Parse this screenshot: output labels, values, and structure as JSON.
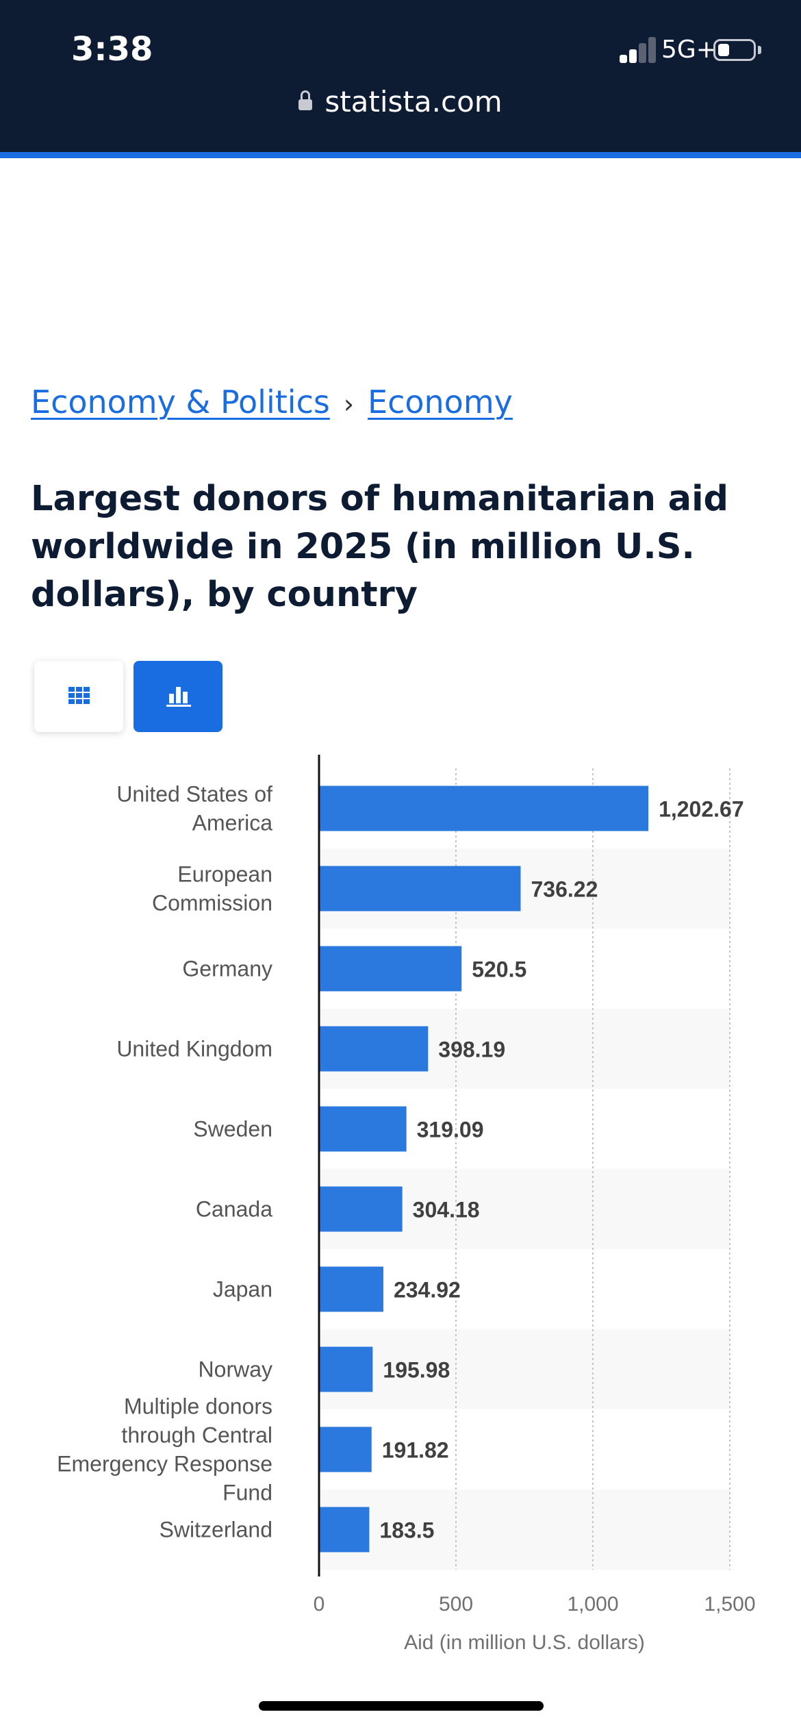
{
  "status": {
    "time": "3:38",
    "network": "5G+"
  },
  "browser": {
    "url": "statista.com"
  },
  "breadcrumbs": [
    {
      "label": "Economy & Politics"
    },
    {
      "label": "Economy"
    }
  ],
  "breadcrumb_separator": "›",
  "page": {
    "title": "Largest donors of humanitarian aid worldwide in 2025 (in million U.S. dollars), by country"
  },
  "view_toggle": {
    "table_icon": "grid-icon",
    "chart_icon": "bar-chart-icon",
    "active": "chart"
  },
  "colors": {
    "bar": "#2b78df",
    "accent": "#1a6de0",
    "header_bg": "#0d1b33"
  },
  "chart_data": {
    "type": "bar",
    "orientation": "horizontal",
    "categories": [
      [
        "United States of",
        "America"
      ],
      [
        "European",
        "Commission"
      ],
      [
        "Germany"
      ],
      [
        "United Kingdom"
      ],
      [
        "Sweden"
      ],
      [
        "Canada"
      ],
      [
        "Japan"
      ],
      [
        "Norway"
      ],
      [
        "Multiple donors",
        "through Central",
        "Emergency Response",
        "Fund"
      ],
      [
        "Switzerland"
      ]
    ],
    "values": [
      1202.67,
      736.22,
      520.5,
      398.19,
      319.09,
      304.18,
      234.92,
      195.98,
      191.82,
      183.5
    ],
    "value_labels": [
      "1,202.67",
      "736.22",
      "520.5",
      "398.19",
      "319.09",
      "304.18",
      "234.92",
      "195.98",
      "191.82",
      "183.5"
    ],
    "xticks": [
      0,
      500,
      1000,
      1500
    ],
    "xtick_labels": [
      "0",
      "500",
      "1,000",
      "1,500"
    ],
    "xlim": [
      0,
      1500
    ],
    "xlabel": "Aid (in million U.S. dollars)",
    "grid": true,
    "alternating_row_shading": true
  }
}
